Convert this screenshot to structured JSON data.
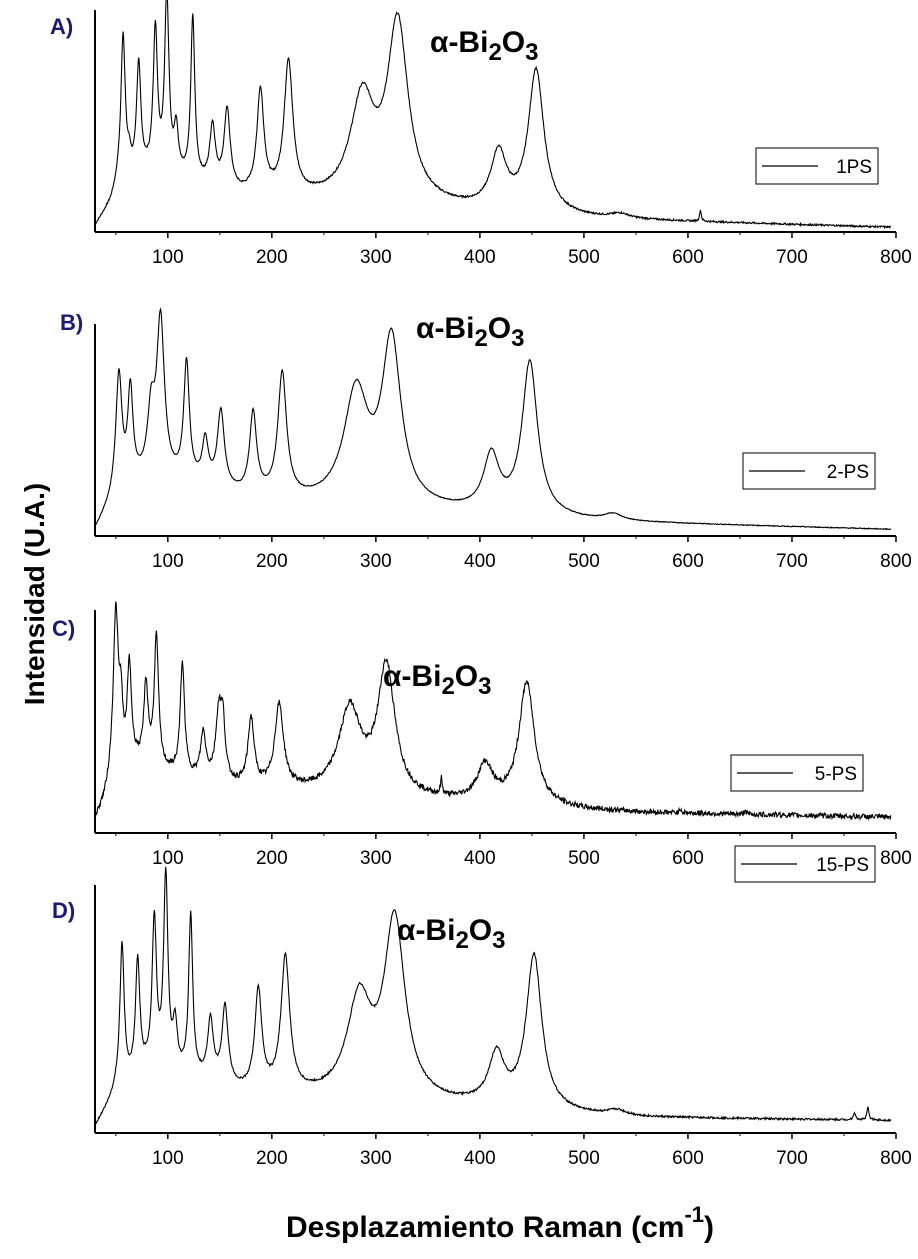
{
  "figure": {
    "ylabel": "Intensidad (U.A.)",
    "xlabel": "Desplazamiento Raman (cm",
    "xlabel_sup": "-1",
    "xlabel_end": ")"
  },
  "chart_data": [
    {
      "type": "line",
      "panel_label": "A)",
      "annotation": {
        "prefix": "α-Bi",
        "sub1": "2",
        "mid": "O",
        "sub2": "3"
      },
      "series": [
        {
          "name": "1PS"
        }
      ],
      "legend": "right",
      "xlim": [
        30,
        800
      ],
      "ylim": [
        0,
        1
      ],
      "xticks": [
        100,
        200,
        300,
        400,
        500,
        600,
        700,
        800
      ],
      "baseline": [
        [
          30,
          0.02
        ],
        [
          45,
          0.12
        ],
        [
          52,
          0.2
        ],
        [
          80,
          0.25
        ],
        [
          120,
          0.22
        ],
        [
          170,
          0.16
        ],
        [
          230,
          0.14
        ],
        [
          300,
          0.12
        ],
        [
          400,
          0.09
        ],
        [
          500,
          0.06
        ],
        [
          560,
          0.05
        ],
        [
          800,
          0.02
        ]
      ],
      "peaks": [
        {
          "x": 57,
          "h": 0.66,
          "w": 2.5
        },
        {
          "x": 63,
          "h": 0.07,
          "w": 2
        },
        {
          "x": 72,
          "h": 0.5,
          "w": 2.5
        },
        {
          "x": 88,
          "h": 0.64,
          "w": 2.5
        },
        {
          "x": 99,
          "h": 0.8,
          "w": 2.5
        },
        {
          "x": 108,
          "h": 0.2,
          "w": 2.5
        },
        {
          "x": 124,
          "h": 0.73,
          "w": 2.3
        },
        {
          "x": 143,
          "h": 0.26,
          "w": 3.2
        },
        {
          "x": 157,
          "h": 0.35,
          "w": 3.5
        },
        {
          "x": 189,
          "h": 0.46,
          "w": 4
        },
        {
          "x": 216,
          "h": 0.6,
          "w": 5
        },
        {
          "x": 287,
          "h": 0.45,
          "w": 14
        },
        {
          "x": 321,
          "h": 0.8,
          "w": 12
        },
        {
          "x": 418,
          "h": 0.25,
          "w": 9
        },
        {
          "x": 454,
          "h": 0.64,
          "w": 9
        },
        {
          "x": 535,
          "h": 0.02,
          "w": 10
        },
        {
          "x": 612,
          "h": 0.05,
          "w": 1
        }
      ],
      "noise": 0.004
    },
    {
      "type": "line",
      "panel_label": "B)",
      "annotation": {
        "prefix": "α-Bi",
        "sub1": "2",
        "mid": "O",
        "sub2": "3"
      },
      "series": [
        {
          "name": "2-PS"
        }
      ],
      "legend": "right",
      "xlim": [
        30,
        800
      ],
      "ylim": [
        0,
        1
      ],
      "xticks": [
        100,
        200,
        300,
        400,
        500,
        600,
        700,
        800
      ],
      "baseline": [
        [
          30,
          0.02
        ],
        [
          40,
          0.1
        ],
        [
          50,
          0.18
        ],
        [
          80,
          0.26
        ],
        [
          120,
          0.24
        ],
        [
          170,
          0.18
        ],
        [
          230,
          0.15
        ],
        [
          300,
          0.13
        ],
        [
          400,
          0.1
        ],
        [
          500,
          0.07
        ],
        [
          560,
          0.06
        ],
        [
          800,
          0.03
        ]
      ],
      "peaks": [
        {
          "x": 53,
          "h": 0.55,
          "w": 3.5
        },
        {
          "x": 64,
          "h": 0.44,
          "w": 3
        },
        {
          "x": 84,
          "h": 0.28,
          "w": 4
        },
        {
          "x": 93,
          "h": 0.74,
          "w": 4.5
        },
        {
          "x": 118,
          "h": 0.55,
          "w": 3.2
        },
        {
          "x": 136,
          "h": 0.2,
          "w": 3.5
        },
        {
          "x": 151,
          "h": 0.36,
          "w": 4
        },
        {
          "x": 182,
          "h": 0.38,
          "w": 4
        },
        {
          "x": 210,
          "h": 0.58,
          "w": 5
        },
        {
          "x": 281,
          "h": 0.52,
          "w": 14
        },
        {
          "x": 315,
          "h": 0.77,
          "w": 11
        },
        {
          "x": 411,
          "h": 0.26,
          "w": 9
        },
        {
          "x": 448,
          "h": 0.72,
          "w": 9
        },
        {
          "x": 528,
          "h": 0.03,
          "w": 10
        }
      ],
      "noise": 0.002
    },
    {
      "type": "line",
      "panel_label": "C)",
      "annotation": {
        "prefix": "α-Bi",
        "sub1": "2",
        "mid": "O",
        "sub2": "3"
      },
      "series": [
        {
          "name": "5-PS"
        }
      ],
      "legend": "right",
      "xlim": [
        30,
        800
      ],
      "ylim": [
        0,
        1
      ],
      "xticks": [
        100,
        200,
        300,
        400,
        500,
        600,
        700,
        800
      ],
      "baseline": [
        [
          30,
          0.05
        ],
        [
          38,
          0.12
        ],
        [
          45,
          0.2
        ],
        [
          70,
          0.3
        ],
        [
          120,
          0.24
        ],
        [
          170,
          0.2
        ],
        [
          230,
          0.18
        ],
        [
          300,
          0.15
        ],
        [
          400,
          0.13
        ],
        [
          500,
          0.1
        ],
        [
          560,
          0.09
        ],
        [
          800,
          0.07
        ]
      ],
      "peaks": [
        {
          "x": 50,
          "h": 0.75,
          "w": 3
        },
        {
          "x": 55,
          "h": 0.25,
          "w": 2
        },
        {
          "x": 63,
          "h": 0.45,
          "w": 2.5
        },
        {
          "x": 79,
          "h": 0.35,
          "w": 2.5
        },
        {
          "x": 89,
          "h": 0.58,
          "w": 2.5
        },
        {
          "x": 114,
          "h": 0.5,
          "w": 2.5
        },
        {
          "x": 134,
          "h": 0.2,
          "w": 3
        },
        {
          "x": 149,
          "h": 0.3,
          "w": 3.5
        },
        {
          "x": 153,
          "h": 0.22,
          "w": 2.5
        },
        {
          "x": 180,
          "h": 0.3,
          "w": 3.5
        },
        {
          "x": 207,
          "h": 0.37,
          "w": 5
        },
        {
          "x": 275,
          "h": 0.38,
          "w": 13
        },
        {
          "x": 310,
          "h": 0.58,
          "w": 10
        },
        {
          "x": 363,
          "h": 0.07,
          "w": 1
        },
        {
          "x": 405,
          "h": 0.16,
          "w": 9
        },
        {
          "x": 445,
          "h": 0.55,
          "w": 9
        },
        {
          "x": 593,
          "h": 0.02,
          "w": 1
        },
        {
          "x": 655,
          "h": 0.02,
          "w": 1
        }
      ],
      "noise": 0.012
    },
    {
      "type": "line",
      "panel_label": "D)",
      "annotation": {
        "prefix": "α-Bi",
        "sub1": "2",
        "mid": "O",
        "sub2": "3"
      },
      "series": [
        {
          "name": "15-PS"
        }
      ],
      "legend": "right",
      "xlim": [
        30,
        800
      ],
      "ylim": [
        0,
        1
      ],
      "xticks": [
        100,
        200,
        300,
        400,
        500,
        600,
        700,
        800
      ],
      "baseline": [
        [
          30,
          0.02
        ],
        [
          42,
          0.1
        ],
        [
          50,
          0.16
        ],
        [
          80,
          0.24
        ],
        [
          120,
          0.22
        ],
        [
          170,
          0.16
        ],
        [
          230,
          0.14
        ],
        [
          300,
          0.12
        ],
        [
          400,
          0.1
        ],
        [
          500,
          0.07
        ],
        [
          560,
          0.06
        ],
        [
          800,
          0.05
        ]
      ],
      "peaks": [
        {
          "x": 56,
          "h": 0.57,
          "w": 2.5
        },
        {
          "x": 71,
          "h": 0.46,
          "w": 2.5
        },
        {
          "x": 87,
          "h": 0.6,
          "w": 2.5
        },
        {
          "x": 98,
          "h": 0.78,
          "w": 2.5
        },
        {
          "x": 107,
          "h": 0.18,
          "w": 2.5
        },
        {
          "x": 122,
          "h": 0.64,
          "w": 2.3
        },
        {
          "x": 141,
          "h": 0.24,
          "w": 3.2
        },
        {
          "x": 155,
          "h": 0.31,
          "w": 3.5
        },
        {
          "x": 187,
          "h": 0.4,
          "w": 4
        },
        {
          "x": 213,
          "h": 0.54,
          "w": 5
        },
        {
          "x": 284,
          "h": 0.39,
          "w": 14
        },
        {
          "x": 318,
          "h": 0.72,
          "w": 12
        },
        {
          "x": 416,
          "h": 0.2,
          "w": 9
        },
        {
          "x": 452,
          "h": 0.62,
          "w": 9
        },
        {
          "x": 532,
          "h": 0.02,
          "w": 10
        },
        {
          "x": 760,
          "h": 0.03,
          "w": 1.2
        },
        {
          "x": 773,
          "h": 0.05,
          "w": 1.2
        }
      ],
      "noise": 0.004
    }
  ]
}
